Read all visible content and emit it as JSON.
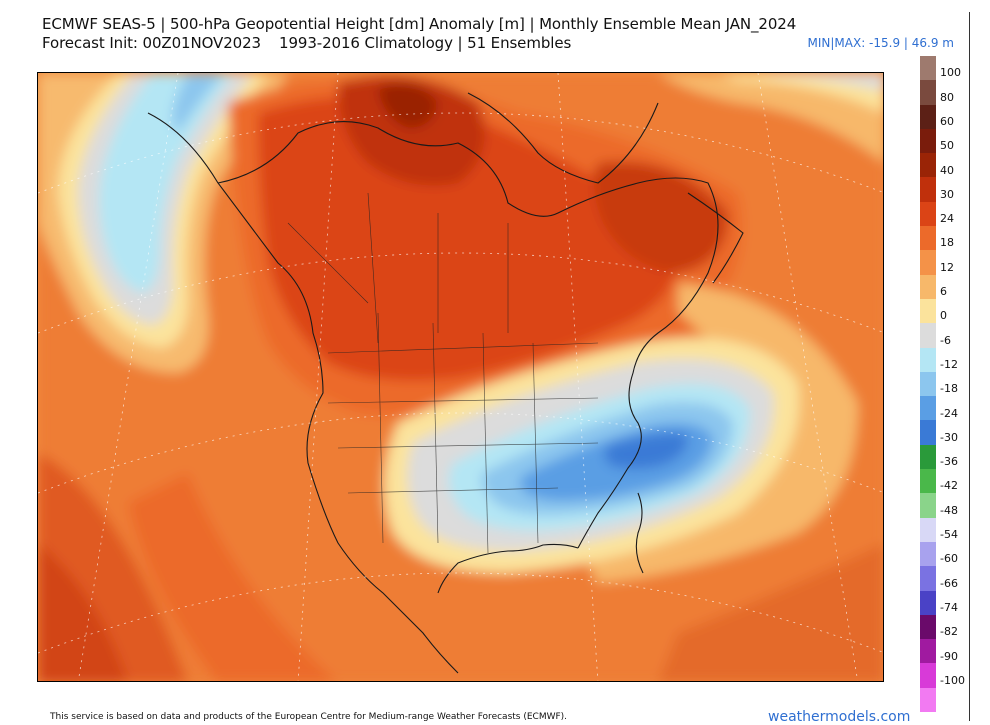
{
  "header": {
    "title": "ECMWF SEAS-5 | 500-hPa Geopotential Height [dm] Anomaly [m] | Monthly Ensemble Mean JAN_2024",
    "init": "Forecast Init: 00Z01NOV2023",
    "climatology": "1993-2016 Climatology | 51 Ensembles",
    "minmax": "MIN|MAX: -15.9 | 46.9 m"
  },
  "colorbar": {
    "labels": [
      "100",
      "80",
      "60",
      "50",
      "40",
      "30",
      "24",
      "18",
      "12",
      "6",
      "0",
      "-6",
      "-12",
      "-18",
      "-24",
      "-30",
      "-36",
      "-42",
      "-48",
      "-54",
      "-60",
      "-66",
      "-74",
      "-82",
      "-90",
      "-100"
    ],
    "colors": [
      "#9e7a6e",
      "#7a4a3e",
      "#5c2016",
      "#7a1c0c",
      "#9a2406",
      "#c0300c",
      "#db4416",
      "#ec6a2a",
      "#f49248",
      "#f7b86a",
      "#fbe39c",
      "#dcdcdc",
      "#b4e6f4",
      "#8cc6ee",
      "#5a9ee4",
      "#3a7ad6",
      "#2a9a3a",
      "#4ab84a",
      "#8ad48a",
      "#d8d8f6",
      "#a8a2ee",
      "#7a72e2",
      "#4a42c6",
      "#6a0a6a",
      "#a01aa0",
      "#d83ad8",
      "#f27af2"
    ]
  },
  "footer": {
    "disclaimer": "This service is based on data and products of the European Centre for Medium-range Weather Forecasts (ECMWF).",
    "brand": "weathermodels.com"
  }
}
